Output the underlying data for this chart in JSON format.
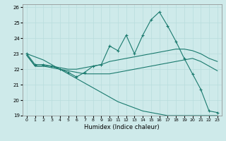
{
  "xlabel": "Humidex (Indice chaleur)",
  "xlim": [
    -0.5,
    23.5
  ],
  "ylim": [
    19,
    26.2
  ],
  "yticks": [
    19,
    20,
    21,
    22,
    23,
    24,
    25,
    26
  ],
  "xticks": [
    0,
    1,
    2,
    3,
    4,
    5,
    6,
    7,
    8,
    9,
    10,
    11,
    12,
    13,
    14,
    15,
    16,
    17,
    18,
    19,
    20,
    21,
    22,
    23
  ],
  "bg_color": "#ceeaea",
  "line_color": "#1a7a6e",
  "line1_x": [
    0,
    1,
    2,
    3,
    4,
    5,
    6,
    7,
    8,
    9,
    10,
    11,
    12,
    13,
    14,
    15,
    16,
    17,
    18,
    19,
    20,
    21,
    22,
    23
  ],
  "line1_y": [
    23,
    22.3,
    22.3,
    22.2,
    22.0,
    21.8,
    21.5,
    21.8,
    22.2,
    22.3,
    23.5,
    23.2,
    24.2,
    23.0,
    24.2,
    25.2,
    25.7,
    24.8,
    23.8,
    22.7,
    21.7,
    20.7,
    19.3,
    19.2
  ],
  "line2_x": [
    0,
    1,
    2,
    3,
    4,
    5,
    6,
    7,
    8,
    9,
    10,
    11,
    12,
    13,
    14,
    15,
    16,
    17,
    18,
    19,
    20,
    21,
    22,
    23
  ],
  "line2_y": [
    22.9,
    22.2,
    22.2,
    22.2,
    22.1,
    22.0,
    22.0,
    22.1,
    22.2,
    22.3,
    22.5,
    22.6,
    22.7,
    22.8,
    22.9,
    23.0,
    23.1,
    23.2,
    23.3,
    23.3,
    23.2,
    23.0,
    22.7,
    22.5
  ],
  "line3_x": [
    0,
    1,
    2,
    3,
    4,
    5,
    6,
    7,
    8,
    9,
    10,
    11,
    12,
    13,
    14,
    15,
    16,
    17,
    18,
    19,
    20,
    21,
    22,
    23
  ],
  "line3_y": [
    22.9,
    22.2,
    22.2,
    22.1,
    22.0,
    21.9,
    21.8,
    21.7,
    21.7,
    21.7,
    21.7,
    21.8,
    21.9,
    22.0,
    22.1,
    22.2,
    22.3,
    22.4,
    22.5,
    22.6,
    22.7,
    22.5,
    22.2,
    21.9
  ],
  "line4_x": [
    0,
    1,
    2,
    3,
    4,
    5,
    6,
    7,
    8,
    9,
    10,
    11,
    12,
    13,
    14,
    15,
    16,
    17,
    18,
    19,
    20,
    21,
    22,
    23
  ],
  "line4_y": [
    23.0,
    22.8,
    22.6,
    22.3,
    22.0,
    21.7,
    21.4,
    21.1,
    20.8,
    20.5,
    20.2,
    19.9,
    19.7,
    19.5,
    19.3,
    19.2,
    19.1,
    19.0,
    19.0,
    19.0,
    19.0,
    19.0,
    19.0,
    19.0
  ]
}
